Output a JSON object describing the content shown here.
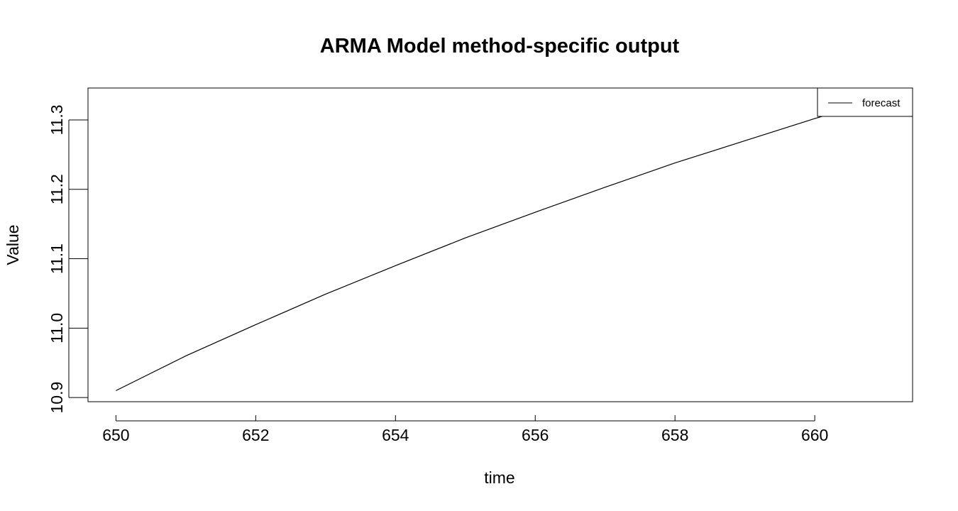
{
  "chart_data": {
    "type": "line",
    "title": "ARMA Model method-specific output",
    "xlabel": "time",
    "ylabel": "Value",
    "xlim": [
      649.6,
      661.4
    ],
    "ylim": [
      10.894,
      11.346
    ],
    "x_ticks": [
      650,
      652,
      654,
      656,
      658,
      660
    ],
    "y_ticks": [
      10.9,
      11.0,
      11.1,
      11.2,
      11.3
    ],
    "x_tick_labels": [
      "650",
      "652",
      "654",
      "656",
      "658",
      "660"
    ],
    "y_tick_labels": [
      "10.9",
      "11.0",
      "11.1",
      "11.2",
      "11.3"
    ],
    "grid": false,
    "legend_position": "top-right",
    "series": [
      {
        "name": "forecast",
        "color": "#000000",
        "x": [
          650,
          651,
          652,
          653,
          654,
          655,
          656,
          657,
          658,
          659,
          660,
          661
        ],
        "y": [
          10.91,
          10.96,
          11.005,
          11.049,
          11.09,
          11.13,
          11.167,
          11.203,
          11.238,
          11.27,
          11.302,
          11.332
        ]
      }
    ]
  }
}
